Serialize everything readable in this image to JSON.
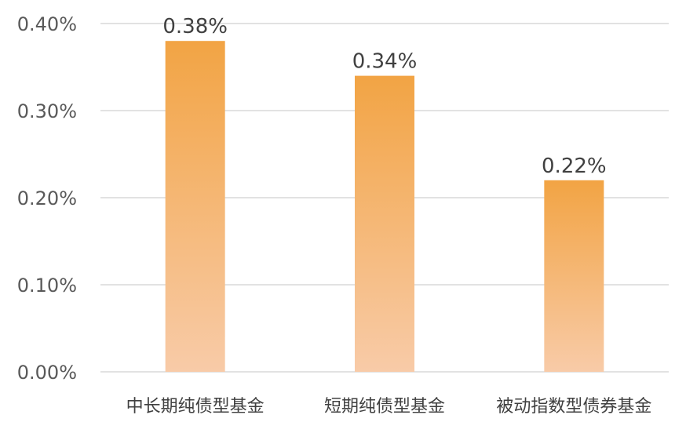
{
  "chart_data": {
    "type": "bar",
    "categories": [
      "中长期纯债型基金",
      "短期纯债型基金",
      "被动指数型债券基金"
    ],
    "values": [
      0.38,
      0.34,
      0.22
    ],
    "data_labels": [
      "0.38%",
      "0.34%",
      "0.22%"
    ],
    "y_ticks": [
      0.0,
      0.1,
      0.2,
      0.3,
      0.4
    ],
    "y_tick_labels": [
      "0.00%",
      "0.10%",
      "0.20%",
      "0.30%",
      "0.40%"
    ],
    "ylim": [
      0,
      0.4
    ],
    "grid": true,
    "legend": "none",
    "colors": {
      "bar_top": "#f2a444",
      "bar_bottom": "#f8cba8",
      "grid": "#d9d9d9"
    }
  }
}
